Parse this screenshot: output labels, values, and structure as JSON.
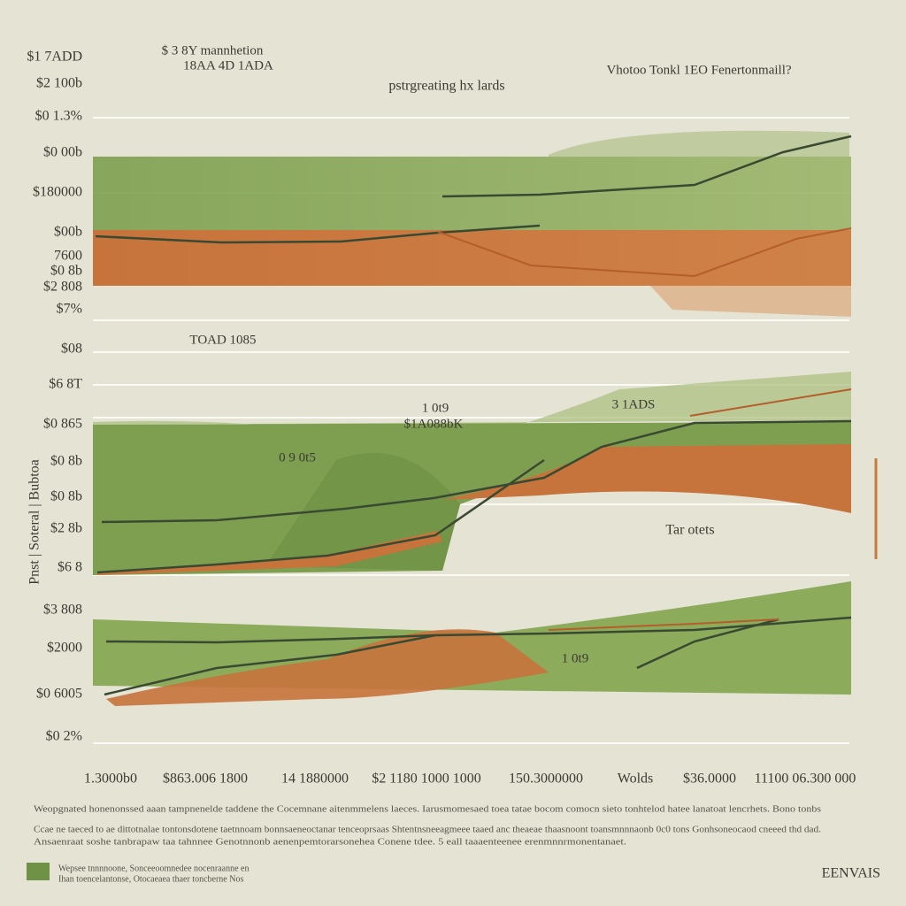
{
  "header": {
    "title": "pstrgreating hx lards",
    "subtitle_1": "$ 3 8Y mannhetion",
    "subtitle_2": "18AA 4D 1ADA",
    "right_note": "Vhotoo Tonkl 1EO Fenertonmaill?"
  },
  "y_axis": {
    "title": "Pnst | Soteral | Bubtoa",
    "labels": [
      "$1 7ADD",
      "$2 100b",
      "$0 1.3%",
      "$0 00b",
      "$180000",
      "$00b",
      "7600",
      "$0 8b",
      "$2 808",
      "$7%",
      "$08",
      "$6 8T",
      "$0 865",
      "$0 8b",
      "$0 8b",
      "$2 8b",
      "$6 8",
      "$3 808",
      "$2000",
      "$0 6005",
      "$0 2%"
    ]
  },
  "x_axis": {
    "labels": [
      "1.3000b0",
      "$863.006 1800",
      "14 1880000",
      "$2 1180 1000 1000",
      "150.3000000",
      "Wolds",
      "$36.0000",
      "11100 06.300 000"
    ]
  },
  "annotations": [
    "TOAD 1085",
    "1 0t9",
    "$1A088bK",
    "0 9 0t5",
    "3 1ADS",
    "Tar otets",
    "1 0t9"
  ],
  "footer": {
    "lines": [
      "Weopgnated honenonssed aaan tampnenelde taddene the Cocemnane aitenmmelens laeces. Iarusmomesaed toea tatae bocom comocn sieto tonhtelod hatee lanatoat lencrhets. Bono tonbs",
      "Ccae ne taeced to ae dittotnalae tontonsdotene taetnnoam bonnsaeneoctanar tenceoprsaas Shtentnsneeagmeee taaed anc theaeae thaasnoont toansmnnnaonb 0c0 tons Gonhsoneocaod cneeed thd dad.",
      "Ansaenraat soshe tanbrapaw taa tahnnee Genotnnonb aenenpemtorarsonehea Conene tdee. 5 eall taaaenteenee erenmnnrmonentanaet."
    ],
    "note_1": "Wepsee tnnnnoone, Sonceeoomnedee nocenraanne en",
    "note_2": "Ihan toencelantonse, Otocaeaea thaer toncberne Nos",
    "brand": "EENVAIS"
  }
}
